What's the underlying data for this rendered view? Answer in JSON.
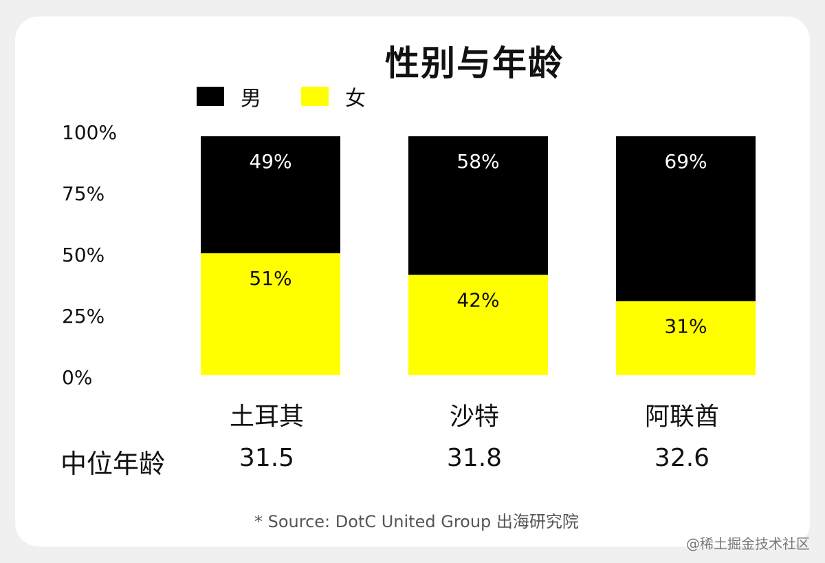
{
  "chart_data": {
    "type": "bar",
    "stacked": true,
    "title": "性别与年龄",
    "categories": [
      "土耳其",
      "沙特",
      "阿联酋"
    ],
    "series": [
      {
        "name": "女",
        "values": [
          51,
          42,
          31
        ],
        "labels": [
          "51%",
          "42%",
          "31%"
        ]
      },
      {
        "name": "男",
        "values": [
          49,
          58,
          69
        ],
        "labels": [
          "49%",
          "58%",
          "69%"
        ]
      }
    ],
    "ylim": [
      0,
      100
    ],
    "yticks": [
      "0%",
      "25%",
      "50%",
      "75%",
      "100%"
    ],
    "grid": false,
    "legend_position": "top-left",
    "colors": {
      "男": "#000000",
      "女": "#ffff00"
    }
  },
  "median_age": {
    "label": "中位年龄",
    "values": [
      "31.5",
      "31.8",
      "32.6"
    ]
  },
  "source": "* Source: DotC United Group 出海研究院",
  "watermark": "@稀土掘金技术社区"
}
